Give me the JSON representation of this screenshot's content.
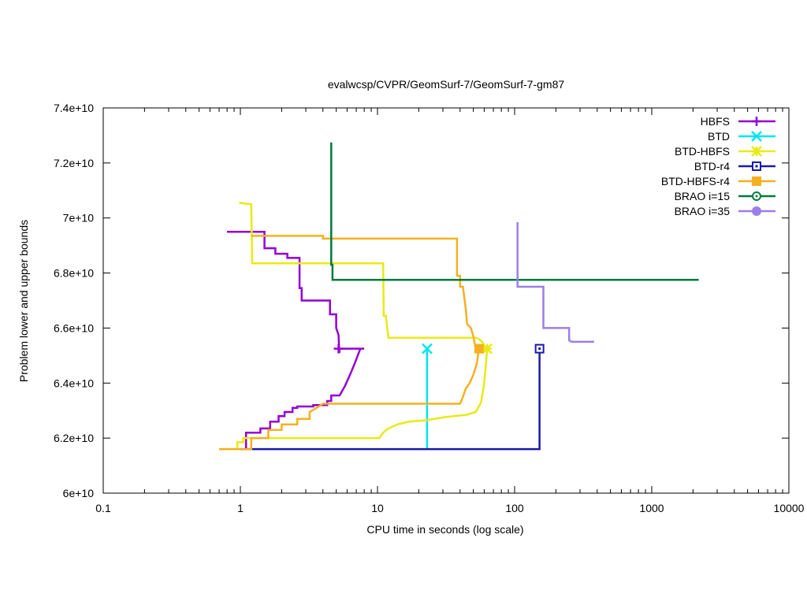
{
  "chart_data": {
    "type": "line",
    "title": "evalwcsp/CVPR/GeomSurf-7/GeomSurf-7-gm87",
    "xlabel": "CPU time in seconds (log scale)",
    "ylabel": "Problem lower and upper bounds",
    "xscale": "log",
    "xlim": [
      0.1,
      10000
    ],
    "ylim": [
      60000000000,
      74000000000
    ],
    "xticks": [
      {
        "v": 0.1,
        "label": "0.1"
      },
      {
        "v": 1,
        "label": "1"
      },
      {
        "v": 10,
        "label": "10"
      },
      {
        "v": 100,
        "label": "100"
      },
      {
        "v": 1000,
        "label": "1000"
      },
      {
        "v": 10000,
        "label": "10000"
      }
    ],
    "yticks": [
      {
        "v": 60000000000,
        "label": "6e+10"
      },
      {
        "v": 62000000000,
        "label": "6.2e+10"
      },
      {
        "v": 64000000000,
        "label": "6.4e+10"
      },
      {
        "v": 66000000000,
        "label": "6.6e+10"
      },
      {
        "v": 68000000000,
        "label": "6.8e+10"
      },
      {
        "v": 70000000000,
        "label": "7e+10"
      },
      {
        "v": 72000000000,
        "label": "7.2e+10"
      },
      {
        "v": 74000000000,
        "label": "7.4e+10"
      }
    ],
    "grid": false,
    "legend_position": "top-right",
    "series": [
      {
        "name": "HBFS",
        "color": "#9400d3",
        "marker": "plus",
        "marker_point": [
          5.2,
          65250000000
        ],
        "upper": [
          [
            0.8,
            69500000000
          ],
          [
            1.5,
            69500000000
          ],
          [
            1.5,
            68900000000
          ],
          [
            1.8,
            68900000000
          ],
          [
            1.8,
            68700000000
          ],
          [
            2.2,
            68700000000
          ],
          [
            2.2,
            68550000000
          ],
          [
            2.7,
            68550000000
          ],
          [
            2.7,
            67450000000
          ],
          [
            2.8,
            67450000000
          ],
          [
            2.8,
            67000000000
          ],
          [
            4.5,
            67000000000
          ],
          [
            4.5,
            66500000000
          ],
          [
            5.0,
            66500000000
          ],
          [
            5.0,
            66000000000
          ],
          [
            5.2,
            65750000000
          ],
          [
            5.25,
            65250000000
          ],
          [
            5.3,
            65100000000
          ]
        ],
        "lower": [
          [
            1.1,
            61600000000
          ],
          [
            1.1,
            62200000000
          ],
          [
            1.4,
            62200000000
          ],
          [
            1.4,
            62350000000
          ],
          [
            1.65,
            62350000000
          ],
          [
            1.65,
            62600000000
          ],
          [
            1.9,
            62600000000
          ],
          [
            1.9,
            62800000000
          ],
          [
            2.1,
            62800000000
          ],
          [
            2.1,
            62950000000
          ],
          [
            2.4,
            62950000000
          ],
          [
            2.4,
            63100000000
          ],
          [
            2.6,
            63100000000
          ],
          [
            2.6,
            63150000000
          ],
          [
            3.4,
            63150000000
          ],
          [
            3.4,
            63200000000
          ],
          [
            4.3,
            63200000000
          ],
          [
            4.3,
            63350000000
          ],
          [
            4.6,
            63350000000
          ],
          [
            4.6,
            63550000000
          ],
          [
            5.3,
            63550000000
          ],
          [
            5.8,
            63900000000
          ],
          [
            6.3,
            64300000000
          ],
          [
            6.8,
            64700000000
          ],
          [
            7.5,
            65250000000
          ]
        ],
        "hline": [
          [
            5.2,
            65250000000
          ],
          [
            8.0,
            65250000000
          ]
        ]
      },
      {
        "name": "BTD",
        "color": "#00e5ee",
        "marker": "cross",
        "marker_point": [
          23,
          65250000000
        ],
        "upper": [],
        "lower": [],
        "vline": [
          [
            23,
            61600000000
          ],
          [
            23,
            65250000000
          ]
        ]
      },
      {
        "name": "BTD-HBFS",
        "color": "#eaea14",
        "marker": "star",
        "marker_point": [
          63,
          65250000000
        ],
        "upper": [
          [
            0.98,
            70550000000
          ],
          [
            1.2,
            70500000000
          ],
          [
            1.22,
            68350000000
          ],
          [
            11.0,
            68350000000
          ],
          [
            11.1,
            66450000000
          ],
          [
            11.5,
            66450000000
          ],
          [
            12.0,
            65650000000
          ],
          [
            52,
            65650000000
          ],
          [
            55,
            65600000000
          ],
          [
            58,
            65500000000
          ],
          [
            62,
            65250000000
          ]
        ],
        "lower": [
          [
            0.7,
            61600000000
          ],
          [
            0.95,
            61600000000
          ],
          [
            0.95,
            61850000000
          ],
          [
            1.05,
            61850000000
          ],
          [
            1.05,
            62000000000
          ],
          [
            10.3,
            62000000000
          ],
          [
            11.0,
            62200000000
          ],
          [
            12,
            62350000000
          ],
          [
            14,
            62500000000
          ],
          [
            17,
            62600000000
          ],
          [
            23,
            62650000000
          ],
          [
            30,
            62750000000
          ],
          [
            36,
            62800000000
          ],
          [
            45,
            62850000000
          ],
          [
            52,
            62950000000
          ],
          [
            57,
            63300000000
          ],
          [
            60,
            64000000000
          ],
          [
            62,
            64800000000
          ],
          [
            63,
            65250000000
          ]
        ]
      },
      {
        "name": "BTD-r4",
        "color": "#1a1aa8",
        "marker": "open-square",
        "marker_point": [
          152,
          65250000000
        ],
        "upper": [],
        "lower": [
          [
            1.0,
            61600000000
          ],
          [
            152,
            61600000000
          ],
          [
            152,
            65250000000
          ]
        ]
      },
      {
        "name": "BTD-HBFS-r4",
        "color": "#f5b020",
        "marker": "filled-square",
        "marker_point": [
          55,
          65250000000
        ],
        "upper": [
          [
            1.2,
            69350000000
          ],
          [
            4.0,
            69350000000
          ],
          [
            4.0,
            69250000000
          ],
          [
            38,
            69250000000
          ],
          [
            38,
            67900000000
          ],
          [
            40,
            67900000000
          ],
          [
            40,
            67500000000
          ],
          [
            42,
            67500000000
          ],
          [
            44,
            66700000000
          ],
          [
            45,
            66150000000
          ],
          [
            48,
            66000000000
          ],
          [
            50,
            65700000000
          ],
          [
            52,
            65250000000
          ]
        ],
        "lower": [
          [
            0.7,
            61600000000
          ],
          [
            1.2,
            61600000000
          ],
          [
            1.2,
            62000000000
          ],
          [
            1.6,
            62000000000
          ],
          [
            1.6,
            62300000000
          ],
          [
            2.0,
            62300000000
          ],
          [
            2.0,
            62500000000
          ],
          [
            2.6,
            62500000000
          ],
          [
            2.6,
            62700000000
          ],
          [
            3.2,
            62700000000
          ],
          [
            3.2,
            62950000000
          ],
          [
            3.6,
            63100000000
          ],
          [
            4.0,
            63250000000
          ],
          [
            40,
            63250000000
          ],
          [
            42,
            63500000000
          ],
          [
            44,
            63800000000
          ],
          [
            47,
            64000000000
          ],
          [
            50,
            64300000000
          ],
          [
            53,
            64700000000
          ],
          [
            55,
            65250000000
          ]
        ]
      },
      {
        "name": "BRAO i=15",
        "color": "#007a3d",
        "marker": "open-circle",
        "marker_point": null,
        "upper": [
          [
            4.6,
            72750000000
          ],
          [
            4.6,
            68300000000
          ],
          [
            4.7,
            68300000000
          ],
          [
            4.7,
            67750000000
          ],
          [
            2200,
            67750000000
          ]
        ],
        "lower": []
      },
      {
        "name": "BRAO i=35",
        "color": "#9b7fe8",
        "marker": "filled-circle",
        "marker_point": null,
        "upper": [
          [
            105,
            69850000000
          ],
          [
            105,
            67500000000
          ],
          [
            162,
            67500000000
          ],
          [
            162,
            66000000000
          ],
          [
            250,
            66000000000
          ],
          [
            250,
            65550000000
          ],
          [
            260,
            65500000000
          ],
          [
            380,
            65500000000
          ]
        ],
        "lower": []
      }
    ]
  }
}
